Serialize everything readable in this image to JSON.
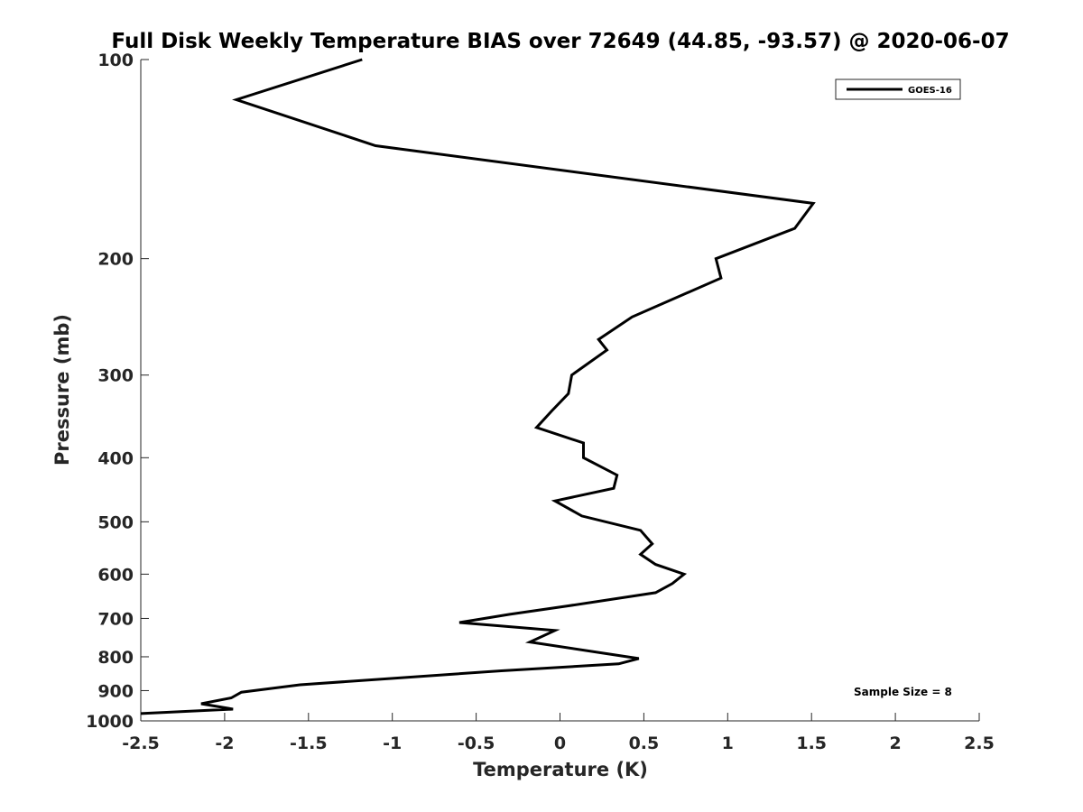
{
  "chart_data": {
    "type": "line",
    "title": "Full Disk Weekly Temperature BIAS over 72649 (44.85, -93.57) @ 2020-06-07",
    "xlabel": "Temperature (K)",
    "ylabel": "Pressure (mb)",
    "xlim": [
      -2.5,
      2.5
    ],
    "ylim": [
      1000,
      100
    ],
    "y_scale": "log",
    "y_reversed": true,
    "xticks": [
      -2.5,
      -2,
      -1.5,
      -1,
      -0.5,
      0,
      0.5,
      1,
      1.5,
      2,
      2.5
    ],
    "xtick_labels": [
      "-2.5",
      "-2",
      "-1.5",
      "-1",
      "-0.5",
      "0",
      "0.5",
      "1",
      "1.5",
      "2",
      "2.5"
    ],
    "yticks": [
      100,
      200,
      300,
      400,
      500,
      600,
      700,
      800,
      900,
      1000
    ],
    "ytick_labels": [
      "100",
      "200",
      "300",
      "400",
      "500",
      "600",
      "700",
      "800",
      "900",
      "1000"
    ],
    "grid": false,
    "legend_position": "top-right",
    "series": [
      {
        "name": "GOES-16",
        "color": "#000000",
        "x": [
          -1.18,
          -1.93,
          -1.1,
          1.51,
          1.4,
          0.93,
          0.96,
          0.43,
          0.23,
          0.28,
          0.07,
          0.05,
          -0.05,
          -0.14,
          0.14,
          0.14,
          0.34,
          0.32,
          -0.03,
          0.13,
          0.48,
          0.55,
          0.48,
          0.57,
          0.74,
          0.67,
          0.57,
          0.05,
          -0.3,
          -0.6,
          -0.03,
          -0.18,
          0.26,
          0.47,
          0.35,
          -0.35,
          -1.55,
          -1.9,
          -1.96,
          -2.14,
          -1.95,
          -2.5
        ],
        "y": [
          100,
          115,
          135,
          165,
          180,
          200,
          214,
          245,
          265,
          275,
          300,
          320,
          340,
          360,
          380,
          400,
          425,
          445,
          465,
          490,
          515,
          540,
          560,
          580,
          600,
          620,
          640,
          670,
          690,
          710,
          730,
          760,
          790,
          805,
          820,
          840,
          882,
          905,
          923,
          942,
          960,
          975
        ]
      }
    ],
    "annotations": [
      "Sample Size = 8"
    ]
  }
}
